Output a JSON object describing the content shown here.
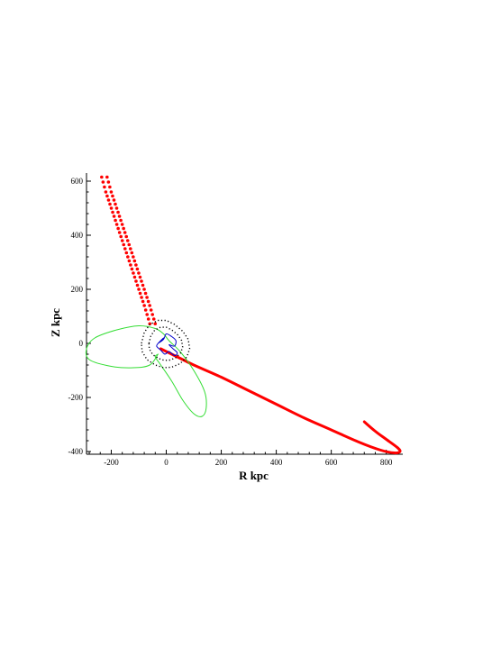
{
  "chart_data": {
    "type": "line",
    "title": "",
    "xlabel": "R kpc",
    "ylabel": "Z kpc",
    "xlim": [
      -290,
      860
    ],
    "ylim": [
      -410,
      630
    ],
    "xticks": [
      -200,
      0,
      200,
      400,
      600,
      800
    ],
    "yticks": [
      -400,
      -200,
      0,
      200,
      400,
      600
    ],
    "xtick_labels": [
      "-200",
      "0",
      "200",
      "400",
      "600",
      "800"
    ],
    "ytick_labels": [
      "-400",
      "-200",
      "0",
      "200",
      "400",
      "600"
    ],
    "series": [
      {
        "style": "dotted-thick",
        "color": "#ff0000",
        "x": [
          -225,
          -210,
          -190,
          -170,
          -150,
          -130,
          -110,
          -90,
          -70,
          -55,
          -45
        ],
        "y": [
          615,
          560,
          500,
          440,
          380,
          320,
          260,
          200,
          140,
          90,
          55
        ]
      },
      {
        "style": "solid-thick",
        "color": "#ff0000",
        "x": [
          -20,
          0,
          50,
          100,
          200,
          300,
          400,
          500,
          600,
          700,
          780,
          830,
          850,
          840,
          800,
          760,
          720
        ],
        "y": [
          -20,
          -30,
          -55,
          -80,
          -125,
          -175,
          -225,
          -275,
          -320,
          -365,
          -395,
          -405,
          -400,
          -385,
          -355,
          -325,
          -290
        ]
      },
      {
        "style": "solid-thin",
        "color": "#33dd33",
        "x": [
          -30,
          -60,
          -120,
          -200,
          -280,
          -290,
          -260,
          -180,
          -100,
          -40,
          -10,
          10,
          50,
          100,
          140,
          145,
          130,
          100,
          60,
          20,
          -20,
          -40,
          -30
        ],
        "y": [
          -40,
          -80,
          -90,
          -85,
          -60,
          -20,
          20,
          50,
          65,
          55,
          35,
          10,
          -30,
          -100,
          -180,
          -240,
          -270,
          -260,
          -210,
          -140,
          -80,
          -50,
          -40
        ]
      },
      {
        "style": "dotted-thin",
        "color": "#000000",
        "x": [
          -90,
          -80,
          -60,
          -30,
          0,
          30,
          60,
          80,
          85,
          75,
          50,
          20,
          -10,
          -40,
          -70,
          -88,
          -90
        ],
        "y": [
          0,
          40,
          70,
          85,
          85,
          70,
          45,
          15,
          -20,
          -50,
          -75,
          -88,
          -90,
          -80,
          -60,
          -30,
          0
        ]
      },
      {
        "style": "solid-thin",
        "color": "#0000cc",
        "x": [
          -30,
          -10,
          0,
          20,
          35,
          30,
          10,
          25,
          40,
          30,
          10,
          -5,
          -20,
          -35,
          -25,
          -10,
          -30
        ],
        "y": [
          0,
          15,
          35,
          25,
          10,
          -10,
          -5,
          -20,
          -35,
          -45,
          -30,
          -40,
          -25,
          -10,
          5,
          20,
          0
        ]
      }
    ]
  }
}
